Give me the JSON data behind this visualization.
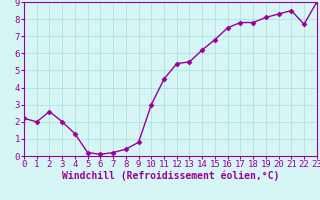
{
  "x": [
    0,
    1,
    2,
    3,
    4,
    5,
    6,
    7,
    8,
    9,
    10,
    11,
    12,
    13,
    14,
    15,
    16,
    17,
    18,
    19,
    20,
    21,
    22,
    23
  ],
  "y": [
    2.2,
    2.0,
    2.6,
    2.0,
    1.3,
    0.2,
    0.1,
    0.2,
    0.4,
    0.8,
    3.0,
    4.5,
    5.4,
    5.5,
    6.2,
    6.8,
    7.5,
    7.8,
    7.8,
    8.1,
    8.3,
    8.5,
    7.7,
    9.0
  ],
  "line_color": "#990099",
  "marker": "D",
  "marker_size": 2.5,
  "bg_color": "#d6f5f5",
  "grid_color": "#aadddd",
  "xlabel": "Windchill (Refroidissement éolien,°C)",
  "xlabel_color": "#990099",
  "tick_color": "#990099",
  "axis_color": "#990099",
  "ylim": [
    0,
    9
  ],
  "xlim": [
    0,
    23
  ],
  "yticks": [
    0,
    1,
    2,
    3,
    4,
    5,
    6,
    7,
    8,
    9
  ],
  "xticks": [
    0,
    1,
    2,
    3,
    4,
    5,
    6,
    7,
    8,
    9,
    10,
    11,
    12,
    13,
    14,
    15,
    16,
    17,
    18,
    19,
    20,
    21,
    22,
    23
  ],
  "font_size": 6.5,
  "xlabel_font_size": 7,
  "line_width": 1.0
}
